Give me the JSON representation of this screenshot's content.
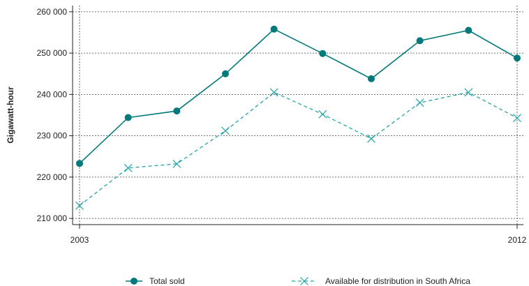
{
  "chart_data": {
    "type": "line",
    "title": "",
    "xlabel": "",
    "ylabel": "Gigawatt-hour",
    "x": [
      2003,
      2004,
      2005,
      2006,
      2007,
      2008,
      2009,
      2010,
      2011,
      2012
    ],
    "x_tick_labels": [
      "2003",
      "2012"
    ],
    "y_ticks": [
      210000,
      220000,
      230000,
      240000,
      250000,
      260000
    ],
    "y_tick_labels": [
      "210 000",
      "220 000",
      "230 000",
      "240 000",
      "250 000",
      "260 000"
    ],
    "ylim": [
      208500,
      261500
    ],
    "grid": true,
    "legend_position": "bottom",
    "series": [
      {
        "name": "Total sold",
        "color": "#00797a",
        "line_style": "solid",
        "marker": "circle",
        "values": [
          223300,
          234400,
          236000,
          245000,
          255800,
          249900,
          243800,
          253000,
          255500,
          248800
        ]
      },
      {
        "name": "Available for distribution in South Africa",
        "color": "#22a3a8",
        "line_style": "dashed",
        "marker": "x",
        "values": [
          213100,
          222200,
          223200,
          231200,
          240500,
          235200,
          229300,
          238000,
          240500,
          234300
        ]
      }
    ]
  }
}
